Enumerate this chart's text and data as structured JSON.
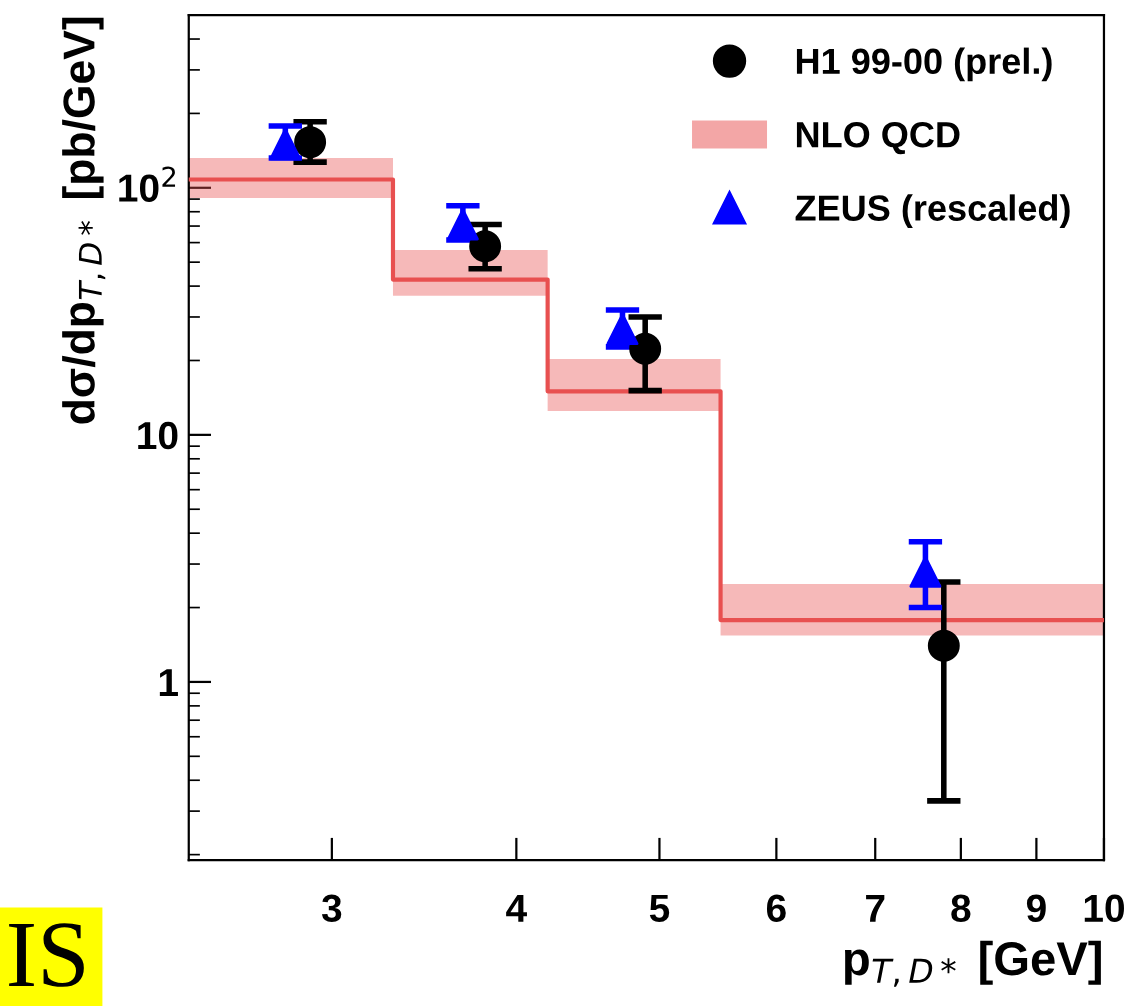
{
  "chart_data": {
    "type": "scatter",
    "xlabel": "p$_{T,D*}$ [GeV]",
    "ylabel": "dσ/dp$_{T,D*}$ [pb/GeV]",
    "log": "xy",
    "xlim": [
      2.4,
      10
    ],
    "ylim": [
      0.19,
      500
    ],
    "xticks": [
      3,
      4,
      5,
      6,
      7,
      8,
      9,
      10
    ],
    "yticks": [
      1,
      10,
      {
        "value": 100,
        "label": "10$^{2}$"
      }
    ],
    "grid": false,
    "legend": "top right",
    "annotations": [
      "IS"
    ],
    "series": [
      {
        "name": "H1 99-00 (prel.)",
        "marker": "circle",
        "color": "#000000",
        "x": [
          2.9,
          3.81,
          4.89,
          7.79
        ],
        "values": [
          153,
          58,
          22.3,
          1.4
        ],
        "errors": [
          [
            127,
            185
          ],
          [
            47,
            71
          ],
          [
            15.1,
            30
          ],
          [
            0.33,
            2.54
          ]
        ]
      },
      {
        "name": "NLO QCD",
        "type": "step",
        "color": "#e85050",
        "x": [
          2.4,
          3.3,
          4.2,
          5.5,
          10
        ],
        "values": [
          108,
          42.5,
          15,
          1.78,
          1.78
        ],
        "lower": [
          91,
          36.6,
          12.5,
          1.54,
          1.54
        ],
        "upper": [
          132,
          56,
          20.3,
          2.49,
          2.49
        ]
      },
      {
        "name": "ZEUS (rescaled)",
        "marker": "triangle",
        "color": "#0000ff",
        "x": [
          2.79,
          3.68,
          4.72,
          7.57
        ],
        "values": [
          150,
          71,
          26.8,
          2.79
        ],
        "errors": [
          [
            132,
            178
          ],
          [
            61.5,
            84.6
          ],
          [
            22.7,
            32
          ],
          [
            2.0,
            3.69
          ]
        ]
      }
    ]
  }
}
